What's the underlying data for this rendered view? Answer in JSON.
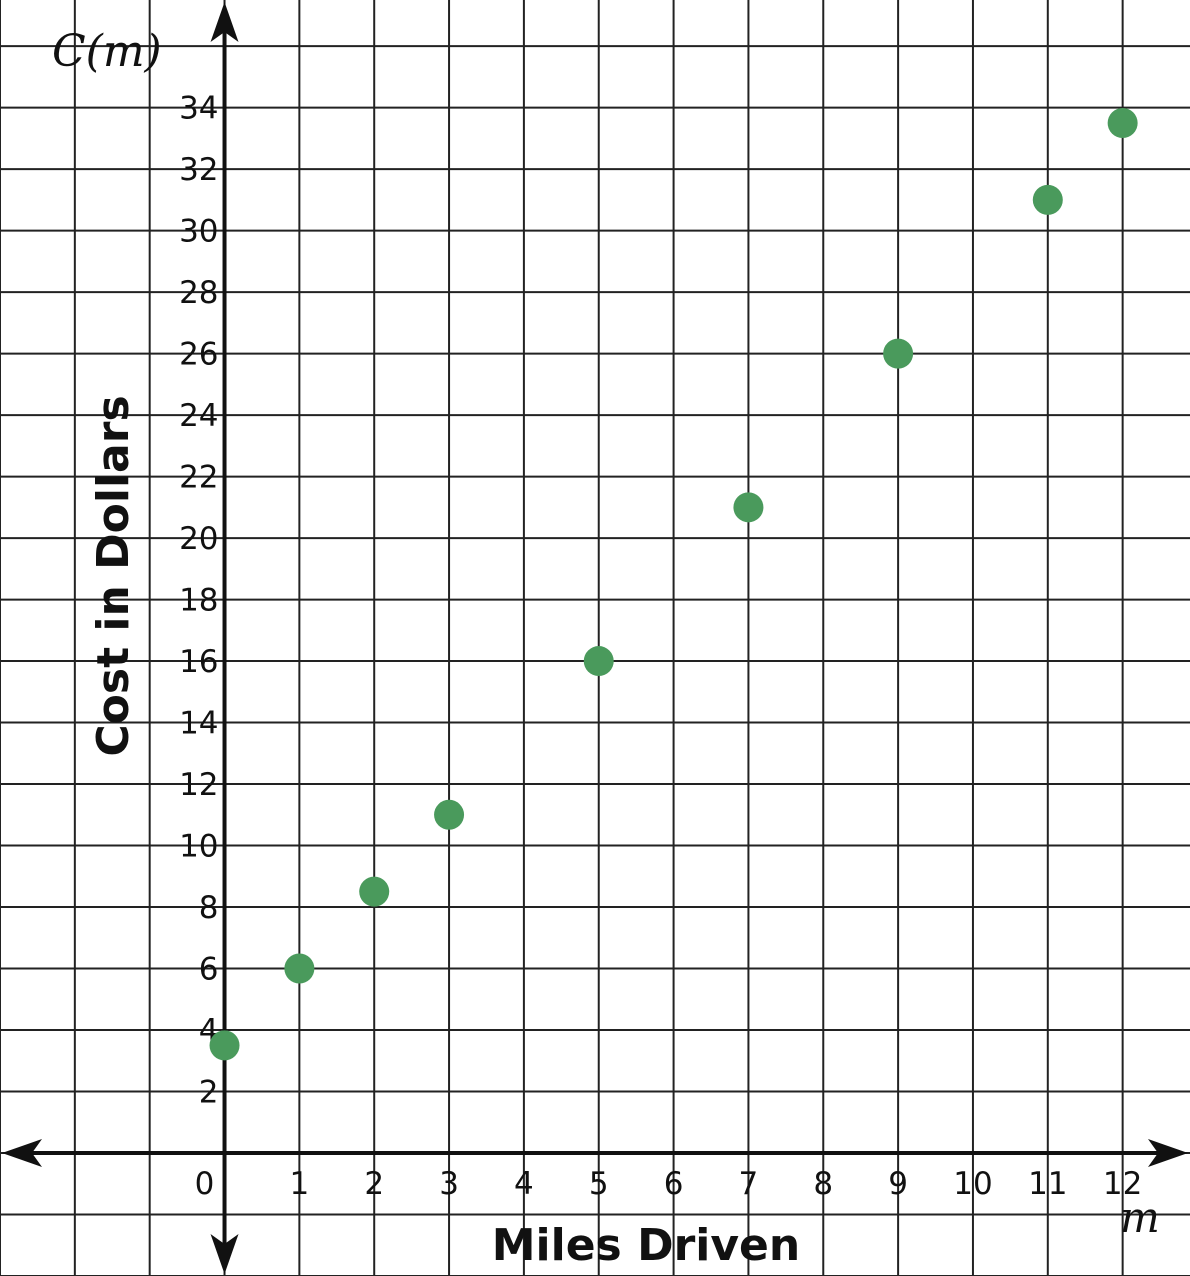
{
  "chart_data": {
    "type": "scatter",
    "xlabel": "Miles Driven",
    "ylabel": "Cost in Dollars",
    "function_label": "C(m)",
    "variable_label": "m",
    "x_ticks": [
      "0",
      "1",
      "2",
      "3",
      "4",
      "5",
      "6",
      "7",
      "8",
      "9",
      "10",
      "11",
      "12"
    ],
    "y_ticks": [
      "2",
      "4",
      "6",
      "8",
      "10",
      "12",
      "14",
      "16",
      "18",
      "20",
      "22",
      "24",
      "26",
      "28",
      "30",
      "32",
      "34"
    ],
    "xlim": [
      -3,
      12.9
    ],
    "ylim": [
      -4,
      37.5
    ],
    "grid": true,
    "point_color": "#4a9a5c",
    "points": [
      {
        "x": 0,
        "y": 3.5
      },
      {
        "x": 1,
        "y": 6
      },
      {
        "x": 2,
        "y": 8.5
      },
      {
        "x": 3,
        "y": 11
      },
      {
        "x": 5,
        "y": 16
      },
      {
        "x": 7,
        "y": 21
      },
      {
        "x": 9,
        "y": 26
      },
      {
        "x": 11,
        "y": 31
      },
      {
        "x": 12,
        "y": 33.5
      }
    ]
  }
}
